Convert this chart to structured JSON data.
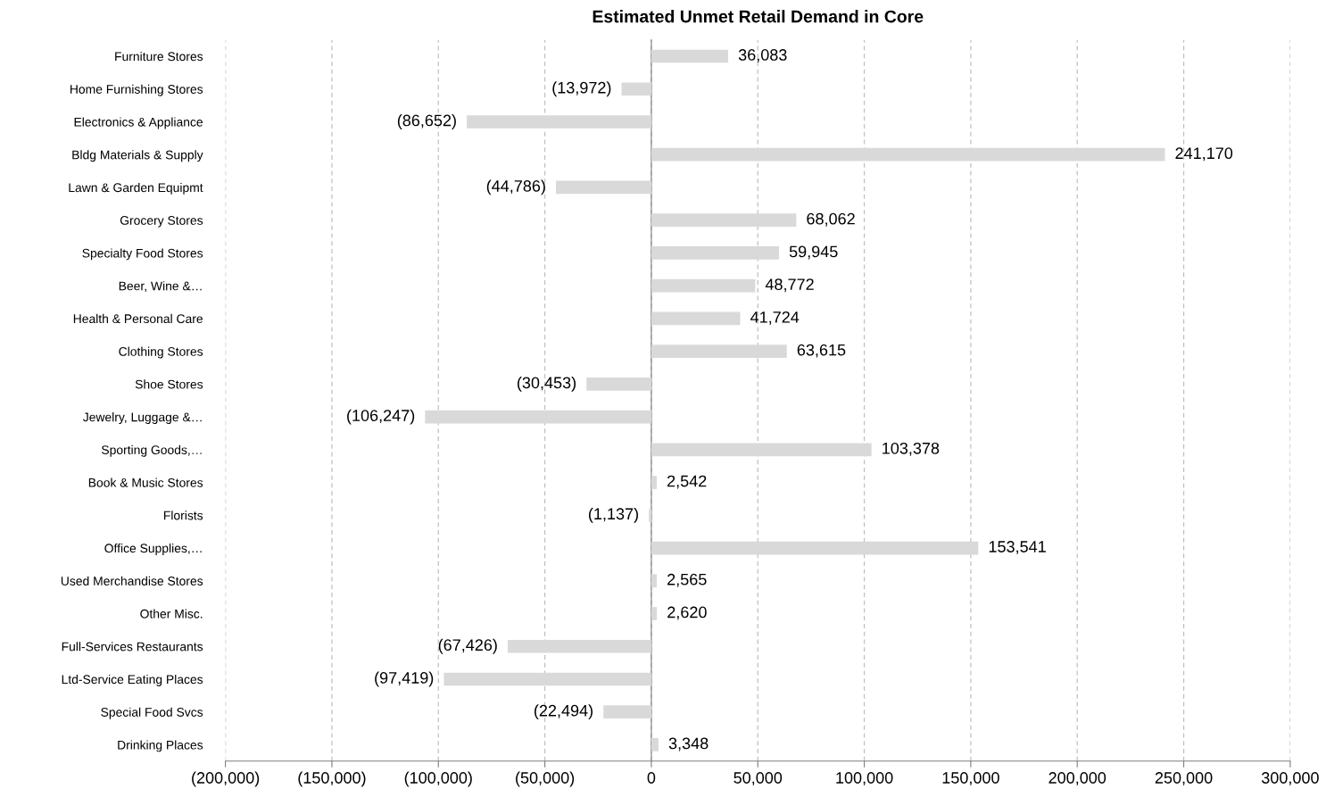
{
  "chart_data": {
    "type": "bar",
    "orientation": "horizontal",
    "title": "Estimated Unmet Retail Demand in Core",
    "categories": [
      "Furniture Stores",
      "Home Furnishing Stores",
      "Electronics & Appliance",
      "Bldg Materials & Supply",
      "Lawn & Garden Equipmt",
      "Grocery Stores",
      "Specialty Food Stores",
      "Beer, Wine &…",
      "Health & Personal Care",
      "Clothing Stores",
      "Shoe Stores",
      "Jewelry, Luggage &…",
      "Sporting Goods,…",
      "Book & Music Stores",
      "Florists",
      "Office Supplies,…",
      "Used Merchandise Stores",
      "Other Misc.",
      "Full-Services Restaurants",
      "Ltd-Service Eating Places",
      "Special Food Svcs",
      "Drinking Places"
    ],
    "values": [
      36083,
      -13972,
      -86652,
      241170,
      -44786,
      68062,
      59945,
      48772,
      41724,
      63615,
      -30453,
      -106247,
      103378,
      2542,
      -1137,
      153541,
      2565,
      2620,
      -67426,
      -97419,
      -22494,
      3348
    ],
    "value_labels": [
      "36,083",
      "(13,972)",
      "(86,652)",
      "241,170",
      "(44,786)",
      "68,062",
      "59,945",
      "48,772",
      "41,724",
      "63,615",
      "(30,453)",
      "(106,247)",
      "103,378",
      "2,542",
      "(1,137)",
      "153,541",
      "2,565",
      "2,620",
      "(67,426)",
      "(97,419)",
      "(22,494)",
      "3,348"
    ],
    "color": "#d9d9d9",
    "xlim": [
      -200000,
      300000
    ],
    "xticks": [
      {
        "value": -200000,
        "label": "(200,000)"
      },
      {
        "value": -150000,
        "label": "(150,000)"
      },
      {
        "value": -100000,
        "label": "(100,000)"
      },
      {
        "value": -50000,
        "label": "(50,000)"
      },
      0,
      {
        "value": 50000,
        "label": "50,000"
      },
      {
        "value": 100000,
        "label": "100,000"
      },
      {
        "value": 150000,
        "label": "150,000"
      },
      {
        "value": 200000,
        "label": "200,000"
      },
      {
        "value": 250000,
        "label": "250,000"
      },
      {
        "value": 300000,
        "label": "300,000"
      }
    ],
    "grid": "x"
  }
}
